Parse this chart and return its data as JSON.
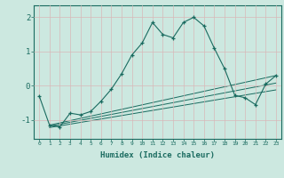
{
  "xlabel": "Humidex (Indice chaleur)",
  "bg_color": "#cce8e0",
  "line_color": "#1a6b60",
  "x_ticks": [
    0,
    1,
    2,
    3,
    4,
    5,
    6,
    7,
    8,
    9,
    10,
    11,
    12,
    13,
    14,
    15,
    16,
    17,
    18,
    19,
    20,
    21,
    22,
    23
  ],
  "ylim": [
    -1.55,
    2.35
  ],
  "xlim": [
    -0.5,
    23.5
  ],
  "yticks": [
    -1,
    0,
    1,
    2
  ],
  "series": {
    "main": {
      "x": [
        0,
        1,
        2,
        3,
        4,
        5,
        6,
        7,
        8,
        9,
        10,
        11,
        12,
        13,
        14,
        15,
        16,
        17,
        18,
        19,
        20,
        21,
        22,
        23
      ],
      "y": [
        -0.3,
        -1.15,
        -1.2,
        -0.8,
        -0.85,
        -0.75,
        -0.45,
        -0.1,
        0.35,
        0.9,
        1.25,
        1.85,
        1.5,
        1.4,
        1.85,
        2.0,
        1.75,
        1.1,
        0.5,
        -0.28,
        -0.35,
        -0.55,
        0.05,
        0.3
      ]
    },
    "line1": {
      "x": [
        1,
        23
      ],
      "y": [
        -1.15,
        0.3
      ]
    },
    "line2": {
      "x": [
        1,
        23
      ],
      "y": [
        -1.18,
        0.08
      ]
    },
    "line3": {
      "x": [
        1,
        23
      ],
      "y": [
        -1.22,
        -0.12
      ]
    }
  }
}
